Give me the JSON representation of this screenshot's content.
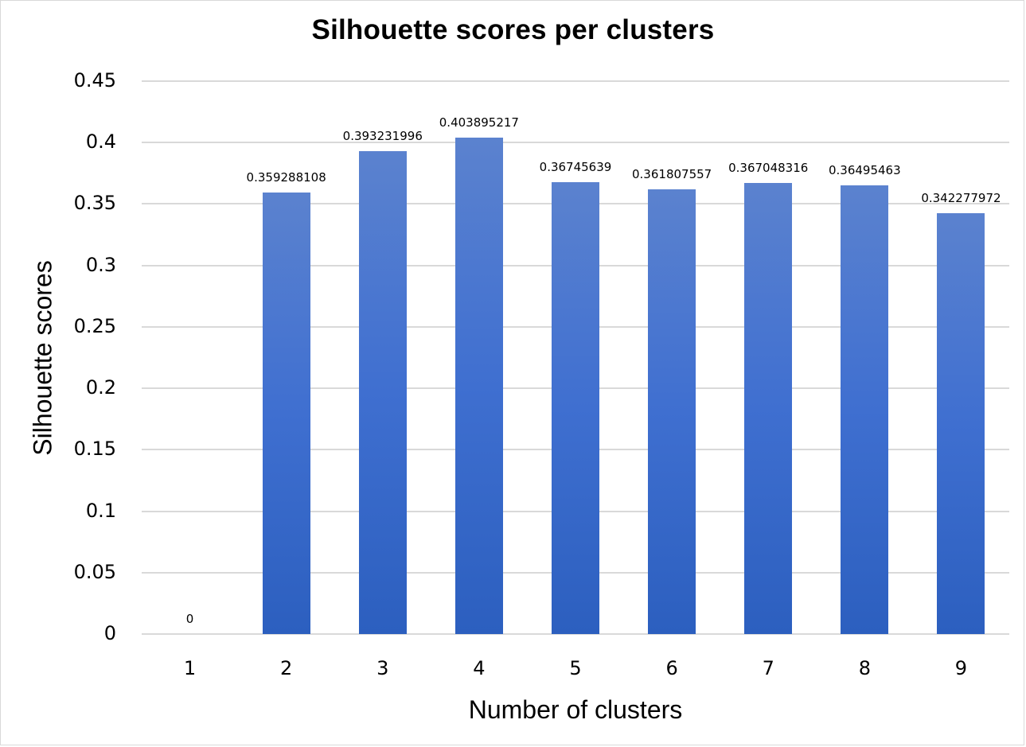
{
  "chart_data": {
    "type": "bar",
    "title": "Silhouette scores per clusters",
    "xlabel": "Number of clusters",
    "ylabel": "Silhouette scores",
    "categories": [
      "1",
      "2",
      "3",
      "4",
      "5",
      "6",
      "7",
      "8",
      "9"
    ],
    "values": [
      0,
      0.359288108,
      0.393231996,
      0.403895217,
      0.36745639,
      0.361807557,
      0.367048316,
      0.36495463,
      0.342277972
    ],
    "data_labels": [
      "0",
      "0.359288108",
      "0.393231996",
      "0.403895217",
      "0.36745639",
      "0.361807557",
      "0.367048316",
      "0.36495463",
      "0.342277972"
    ],
    "ylim": [
      0,
      0.45
    ],
    "yticks": [
      "0",
      "0.05",
      "0.1",
      "0.15",
      "0.2",
      "0.25",
      "0.3",
      "0.35",
      "0.4",
      "0.45"
    ],
    "grid": true,
    "legend": null,
    "bar_color": "#4472c4"
  }
}
